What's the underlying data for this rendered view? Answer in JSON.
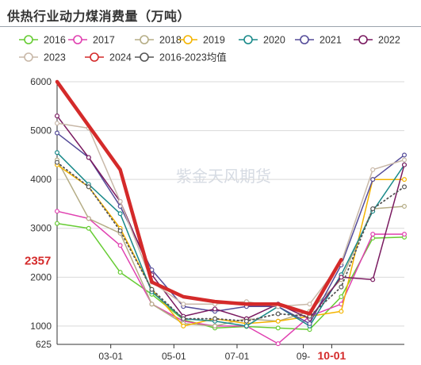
{
  "title": "供热行业动力煤消费量（万吨）",
  "watermark": "紫金天风期货",
  "chart_data": {
    "type": "line",
    "ylim": [
      625,
      6000
    ],
    "y_ticks": [
      625,
      1000,
      2000,
      3000,
      4000,
      5000,
      6000
    ],
    "y_tick_labels": [
      "625",
      "1000",
      "2000",
      "3000",
      "4000",
      "5000",
      "6000"
    ],
    "x_range": [
      1,
      12
    ],
    "x_ticks": [
      {
        "x": 2.7,
        "label": "03-01",
        "highlight": false
      },
      {
        "x": 4.7,
        "label": "05-01",
        "highlight": false
      },
      {
        "x": 6.7,
        "label": "07-01",
        "highlight": false
      },
      {
        "x": 8.8,
        "label": "09-",
        "highlight": false
      },
      {
        "x": 9.7,
        "label": "10-01",
        "highlight": true
      }
    ],
    "marker_label": {
      "value": 2357,
      "text": "2357"
    },
    "series": [
      {
        "name": "2016",
        "color": "#66cc33",
        "width": 1.5,
        "dotted": false,
        "values": [
          3100,
          3000,
          2100,
          1650,
          1130,
          960,
          990,
          960,
          930,
          1600,
          2800,
          2820
        ]
      },
      {
        "name": "2017",
        "color": "#e040b0",
        "width": 1.5,
        "dotted": false,
        "values": [
          3350,
          3200,
          2650,
          1450,
          1100,
          1000,
          1000,
          640,
          1200,
          1450,
          2880,
          2880
        ]
      },
      {
        "name": "2018",
        "color": "#b5ad86",
        "width": 1.5,
        "dotted": false,
        "values": [
          4400,
          3200,
          2900,
          1450,
          1050,
          1000,
          1150,
          1100,
          1300,
          1950,
          3400,
          3450
        ]
      },
      {
        "name": "2019",
        "color": "#f4b400",
        "width": 1.5,
        "dotted": false,
        "values": [
          4300,
          3850,
          3000,
          1750,
          1000,
          1150,
          1050,
          1100,
          1200,
          1300,
          4000,
          4000
        ]
      },
      {
        "name": "2020",
        "color": "#1a8a8a",
        "width": 1.5,
        "dotted": false,
        "values": [
          4550,
          3900,
          3300,
          1700,
          1150,
          1100,
          1000,
          1400,
          1000,
          2050,
          3350,
          4300
        ]
      },
      {
        "name": "2021",
        "color": "#554c99",
        "width": 1.5,
        "dotted": false,
        "values": [
          4950,
          4450,
          3450,
          2150,
          1400,
          1300,
          1400,
          1400,
          1050,
          2250,
          4000,
          4500
        ]
      },
      {
        "name": "2022",
        "color": "#7a1a60",
        "width": 1.5,
        "dotted": false,
        "values": [
          5300,
          4450,
          3550,
          2050,
          1200,
          1350,
          1150,
          1450,
          1150,
          2000,
          1950,
          4300
        ]
      },
      {
        "name": "2023",
        "color": "#c8b8a8",
        "width": 1.5,
        "dotted": false,
        "values": [
          5150,
          5050,
          3550,
          1900,
          1450,
          1450,
          1500,
          1400,
          1450,
          2300,
          4200,
          4400
        ]
      },
      {
        "name": "2024",
        "color": "#d42a2a",
        "width": 4.5,
        "dotted": false,
        "values": [
          6000,
          5100,
          4200,
          1900,
          1600,
          1500,
          1450,
          1450,
          1250,
          2357,
          null,
          null
        ]
      },
      {
        "name": "2016-2023均值",
        "color": "#555555",
        "width": 1.8,
        "dotted": true,
        "values": [
          4350,
          3850,
          2950,
          1750,
          1150,
          1150,
          1100,
          1250,
          1200,
          1800,
          3400,
          3850
        ]
      }
    ],
    "legend_position": "top",
    "grid": true
  }
}
